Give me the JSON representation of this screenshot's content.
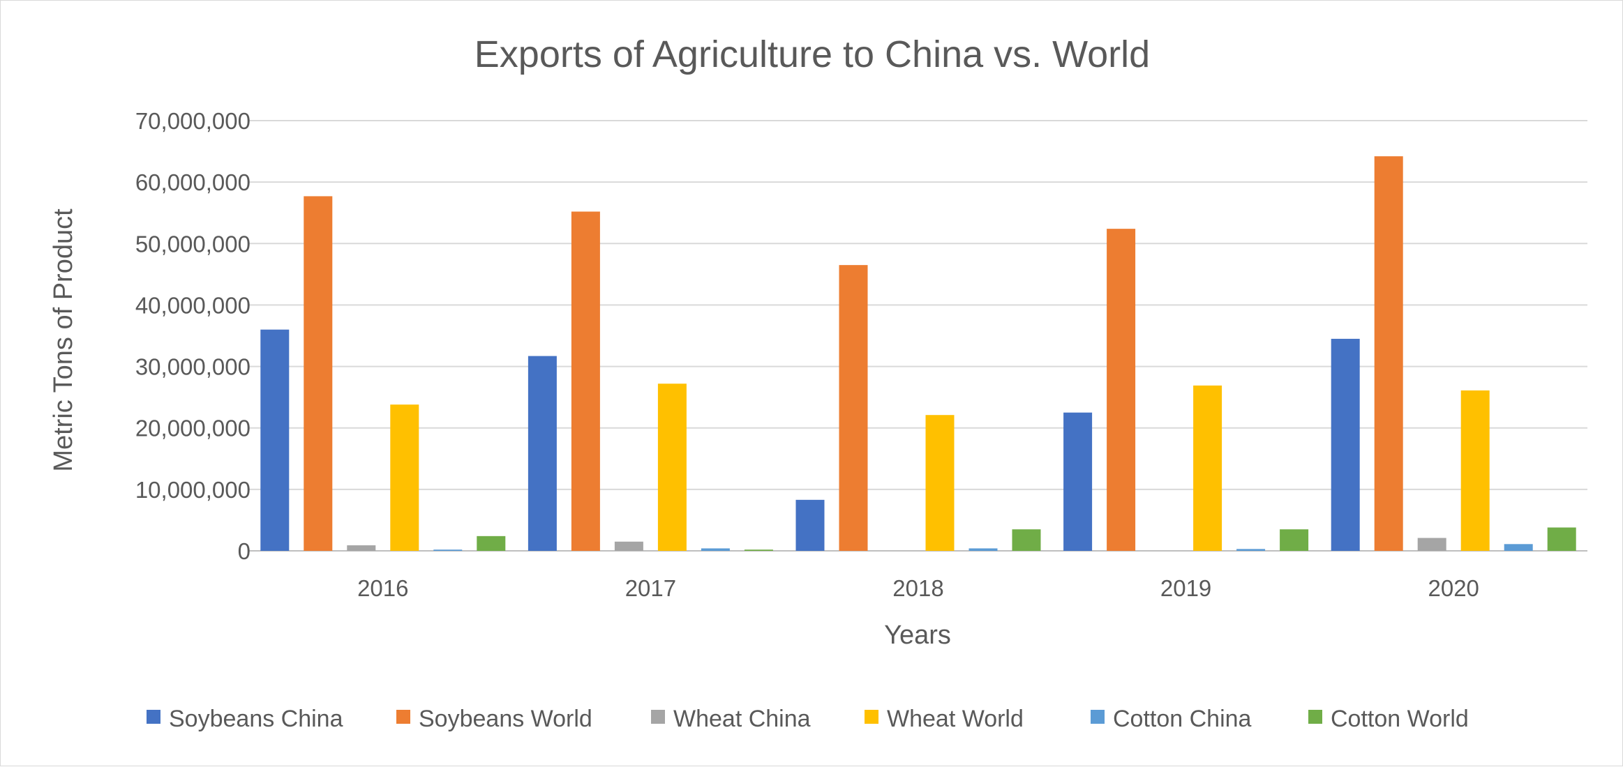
{
  "chart_data": {
    "type": "bar",
    "title": "Exports of Agriculture to China vs. World",
    "xlabel": "Years",
    "ylabel": "Metric Tons of Product",
    "categories": [
      "2016",
      "2017",
      "2018",
      "2019",
      "2020"
    ],
    "ylim": [
      0,
      70000000
    ],
    "yticks": [
      0,
      10000000,
      20000000,
      30000000,
      40000000,
      50000000,
      60000000,
      70000000
    ],
    "ytick_labels": [
      "0",
      "10,000,000",
      "20,000,000",
      "30,000,000",
      "40,000,000",
      "50,000,000",
      "60,000,000",
      "70,000,000"
    ],
    "grid": true,
    "legend_position": "bottom",
    "series": [
      {
        "name": "Soybeans China",
        "color": "#4472C4",
        "values": [
          36000000,
          31700000,
          8300000,
          22500000,
          34500000
        ]
      },
      {
        "name": "Soybeans World",
        "color": "#ED7D31",
        "values": [
          57700000,
          55200000,
          46500000,
          52400000,
          64200000
        ]
      },
      {
        "name": "Wheat China",
        "color": "#A5A5A5",
        "values": [
          900000,
          1500000,
          0,
          0,
          2100000
        ]
      },
      {
        "name": "Wheat World",
        "color": "#FFC000",
        "values": [
          23800000,
          27200000,
          22100000,
          26900000,
          26100000
        ]
      },
      {
        "name": "Cotton China",
        "color": "#5B9BD5",
        "values": [
          200000,
          400000,
          400000,
          300000,
          1100000
        ]
      },
      {
        "name": "Cotton World",
        "color": "#70AD47",
        "values": [
          2400000,
          200000,
          3500000,
          3500000,
          3800000
        ]
      }
    ]
  }
}
